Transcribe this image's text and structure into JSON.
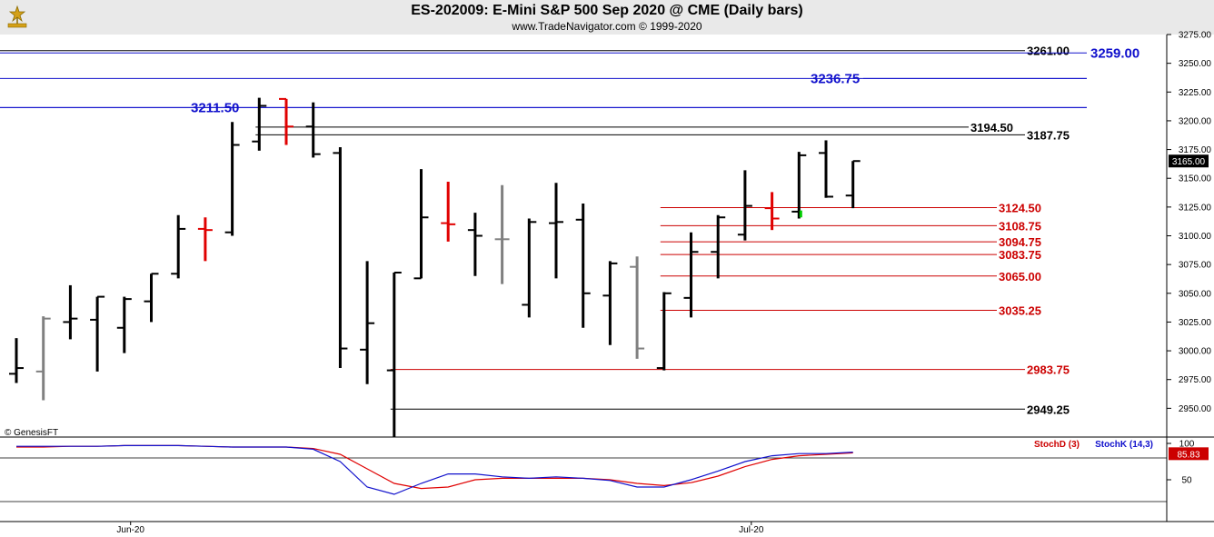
{
  "header": {
    "title": "ES-202009:  E-Mini S&P 500 Sep 2020 @ CME  (Daily bars)",
    "subtitle": "www.TradeNavigator.com © 1999-2020"
  },
  "watermark": "© GenesisFT",
  "colors": {
    "up_bar": "#000000",
    "neutral_bar": "#808080",
    "down_bar": "#e00000",
    "level_black": "#000000",
    "level_blue": "#1010cc",
    "level_red": "#cc0000",
    "stochD": "#cc0000",
    "stochK": "#1010cc",
    "price_flag_bg": "#000000",
    "stoch_flag_bg": "#cc0000"
  },
  "chart_data": [
    {
      "type": "ohlc",
      "title": "ES-202009:  E-Mini S&P 500 Sep 2020 @ CME  (Daily bars)",
      "x_labels": [
        "Jun-20",
        "Jul-20"
      ],
      "ylim": [
        2925,
        3275
      ],
      "y_ticks": [
        "3275.00",
        "3250.00",
        "3225.00",
        "3200.00",
        "3175.00",
        "3150.00",
        "3125.00",
        "3100.00",
        "3075.00",
        "3050.00",
        "3025.00",
        "3000.00",
        "2975.00",
        "2950.00"
      ],
      "last_price": "3165.00",
      "bars": [
        {
          "o": 2980,
          "h": 3011,
          "l": 2972,
          "c": 2985,
          "col": "black"
        },
        {
          "o": 2982,
          "h": 3030,
          "l": 2957,
          "c": 3028,
          "col": "gray"
        },
        {
          "o": 3025,
          "h": 3057,
          "l": 3010,
          "c": 3028,
          "col": "black"
        },
        {
          "o": 3027,
          "h": 3047,
          "l": 2982,
          "c": 3047,
          "col": "black"
        },
        {
          "o": 3020,
          "h": 3047,
          "l": 2998,
          "c": 3045,
          "col": "black"
        },
        {
          "o": 3043,
          "h": 3067,
          "l": 3025,
          "c": 3067,
          "col": "black"
        },
        {
          "o": 3067,
          "h": 3118,
          "l": 3063,
          "c": 3106,
          "col": "black"
        },
        {
          "o": 3106,
          "h": 3116,
          "l": 3078,
          "c": 3105,
          "col": "red"
        },
        {
          "o": 3103,
          "h": 3199,
          "l": 3100,
          "c": 3179,
          "col": "black"
        },
        {
          "o": 3182,
          "h": 3220,
          "l": 3174,
          "c": 3213,
          "col": "black"
        },
        {
          "o": 3219,
          "h": 3219,
          "l": 3179,
          "c": 3195,
          "col": "red"
        },
        {
          "o": 3195,
          "h": 3216,
          "l": 3168,
          "c": 3171,
          "col": "black"
        },
        {
          "o": 3172,
          "h": 3177,
          "l": 2985,
          "c": 3002,
          "col": "black"
        },
        {
          "o": 3001,
          "h": 3078,
          "l": 2971,
          "c": 3024,
          "col": "black"
        },
        {
          "o": 2983,
          "h": 3068,
          "l": 2910,
          "c": 3068,
          "col": "black"
        },
        {
          "o": 3063,
          "h": 3158,
          "l": 3063,
          "c": 3116,
          "col": "black"
        },
        {
          "o": 3111,
          "h": 3147,
          "l": 3095,
          "c": 3110,
          "col": "red"
        },
        {
          "o": 3105,
          "h": 3120,
          "l": 3065,
          "c": 3100,
          "col": "black"
        },
        {
          "o": 3097,
          "h": 3144,
          "l": 3058,
          "c": 3097,
          "col": "gray"
        },
        {
          "o": 3040,
          "h": 3115,
          "l": 3029,
          "c": 3112,
          "col": "black"
        },
        {
          "o": 3111,
          "h": 3146,
          "l": 3063,
          "c": 3112,
          "col": "black"
        },
        {
          "o": 3114,
          "h": 3128,
          "l": 3020,
          "c": 3050,
          "col": "black"
        },
        {
          "o": 3048,
          "h": 3078,
          "l": 3005,
          "c": 3076,
          "col": "black"
        },
        {
          "o": 3073,
          "h": 3082,
          "l": 2993,
          "c": 3002,
          "col": "gray"
        },
        {
          "o": 2985,
          "h": 3051,
          "l": 2983,
          "c": 3050,
          "col": "black"
        },
        {
          "o": 3046,
          "h": 3103,
          "l": 3029,
          "c": 3086,
          "col": "black"
        },
        {
          "o": 3086,
          "h": 3118,
          "l": 3063,
          "c": 3116,
          "col": "black"
        },
        {
          "o": 3101,
          "h": 3157,
          "l": 3096,
          "c": 3126,
          "col": "black"
        },
        {
          "o": 3124,
          "h": 3138,
          "l": 3105,
          "c": 3115,
          "col": "red"
        },
        {
          "o": 3121,
          "h": 3173,
          "l": 3115,
          "c": 3170,
          "col": "black"
        },
        {
          "o": 3172,
          "h": 3183,
          "l": 3133,
          "c": 3134,
          "col": "black"
        },
        {
          "o": 3135,
          "h": 3165,
          "l": 3124,
          "c": 3165,
          "col": "black"
        }
      ],
      "levels": [
        {
          "value": 3261.0,
          "label": "3261.00",
          "color": "black",
          "x_start_bar": -1,
          "x_end": "1128"
        },
        {
          "value": 3259.0,
          "label": "3259.00",
          "color": "blue",
          "x_start_bar": -1,
          "x_end": "1196"
        },
        {
          "value": 3236.75,
          "label": "3236.75",
          "color": "blue",
          "x_start_bar": -1,
          "x_end": "1196"
        },
        {
          "value": 3211.5,
          "label": "3211.50",
          "color": "blue",
          "x_start_bar": -1,
          "x_end": "1196"
        },
        {
          "value": 3194.5,
          "label": "3194.50",
          "color": "black",
          "x_start_bar": 9,
          "x_end": "1066"
        },
        {
          "value": 3187.75,
          "label": "3187.75",
          "color": "black",
          "x_start_bar": 9,
          "x_end": "1128"
        },
        {
          "value": 3124.5,
          "label": "3124.50",
          "color": "red",
          "x_start_bar": 24,
          "x_end": "1097"
        },
        {
          "value": 3108.75,
          "label": "3108.75",
          "color": "red",
          "x_start_bar": 24,
          "x_end": "1097"
        },
        {
          "value": 3094.75,
          "label": "3094.75",
          "color": "red",
          "x_start_bar": 24,
          "x_end": "1097"
        },
        {
          "value": 3083.75,
          "label": "3083.75",
          "color": "red",
          "x_start_bar": 24,
          "x_end": "1097"
        },
        {
          "value": 3065.0,
          "label": "3065.00",
          "color": "red",
          "x_start_bar": 24,
          "x_end": "1097"
        },
        {
          "value": 3035.25,
          "label": "3035.25",
          "color": "red",
          "x_start_bar": 24,
          "x_end": "1097"
        },
        {
          "value": 2983.75,
          "label": "2983.75",
          "color": "red",
          "x_start_bar": 14,
          "x_end": "1128"
        },
        {
          "value": 2949.25,
          "label": "2949.25",
          "color": "black",
          "x_start_bar": 14,
          "x_end": "1128"
        }
      ]
    },
    {
      "type": "line",
      "title": "",
      "ylim": [
        0,
        100
      ],
      "y_ticks": [
        "100",
        "50"
      ],
      "last_value": "85.83",
      "series": [
        {
          "name": "StochD (3)",
          "color": "red",
          "values": [
            95,
            95,
            96,
            96,
            97,
            97,
            97,
            96,
            95,
            95,
            95,
            93,
            85,
            65,
            45,
            38,
            40,
            50,
            52,
            52,
            52,
            52,
            50,
            45,
            42,
            46,
            55,
            68,
            78,
            83,
            85,
            87
          ]
        },
        {
          "name": "StochK (14,3)",
          "color": "blue",
          "values": [
            96,
            96,
            96,
            96,
            97,
            97,
            97,
            96,
            95,
            95,
            95,
            92,
            75,
            40,
            30,
            45,
            58,
            58,
            54,
            52,
            54,
            52,
            49,
            40,
            40,
            50,
            62,
            75,
            83,
            86,
            86,
            88
          ]
        }
      ]
    }
  ]
}
